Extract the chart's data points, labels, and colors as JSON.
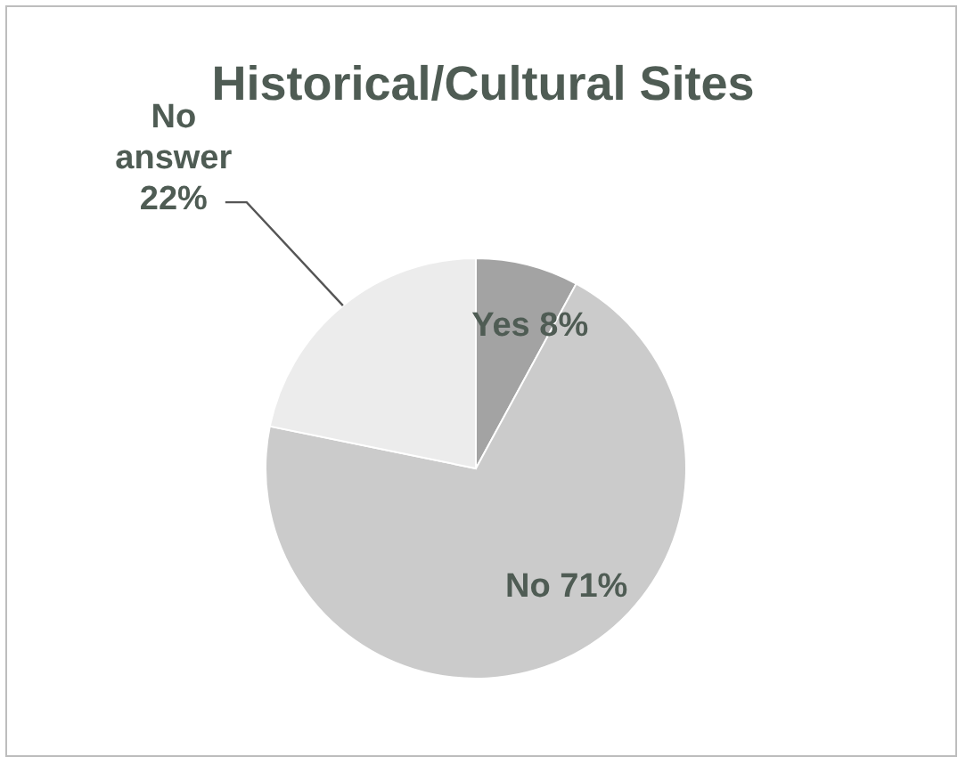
{
  "chart_data": {
    "type": "pie",
    "title": "Historical/Cultural Sites",
    "categories": [
      "Yes",
      "No",
      "No answer"
    ],
    "values": [
      8,
      71,
      22
    ],
    "colors": [
      "#a3a3a3",
      "#cbcbcb",
      "#ececec"
    ],
    "value_labels": [
      "8%",
      "71%",
      "22%"
    ]
  }
}
